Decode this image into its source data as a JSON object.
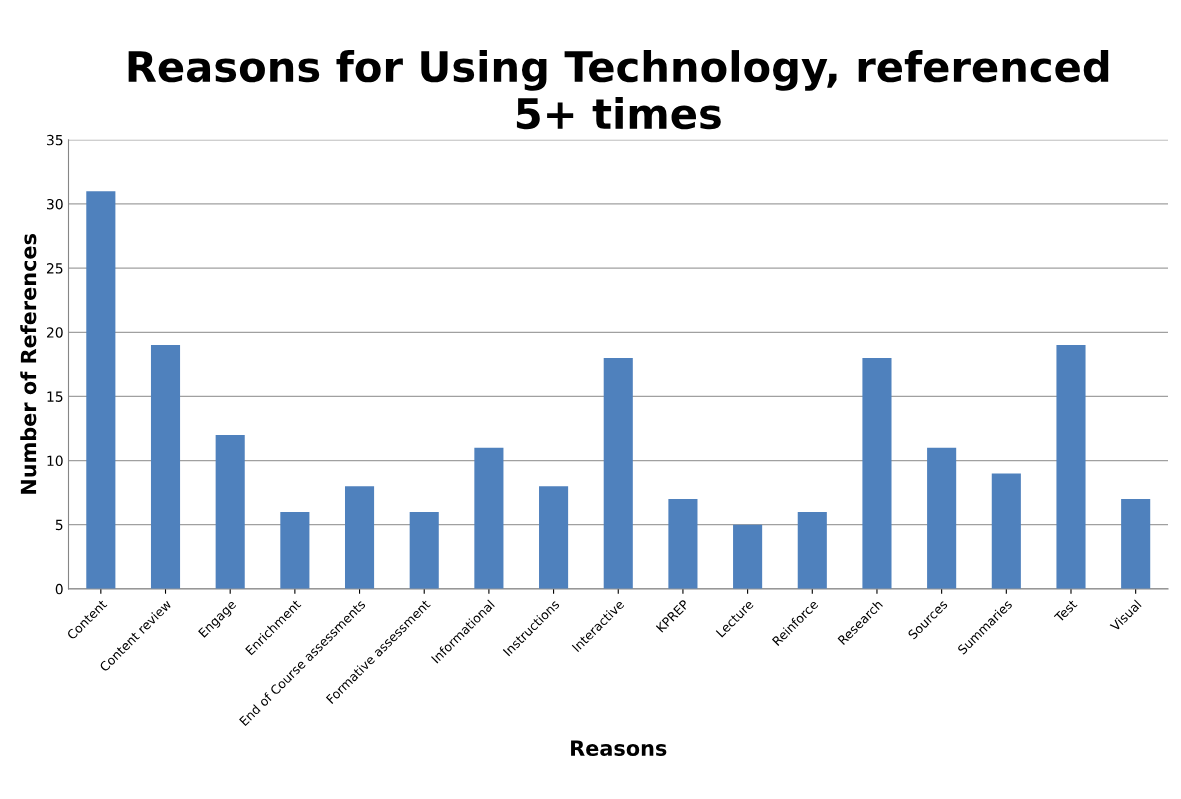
{
  "chart_data": {
    "type": "bar",
    "title": "Reasons for Using Technology, referenced\n5+ times",
    "xlabel": "Reasons",
    "ylabel": "Number of References",
    "categories": [
      "Content",
      "Content review",
      "Engage",
      "Enrichment",
      "End of Course assessments",
      "Formative assessment",
      "Informational",
      "Instructions",
      "Interactive",
      "KPREP",
      "Lecture",
      "Reinforce",
      "Research",
      "Sources",
      "Summaries",
      "Test",
      "Visual"
    ],
    "values": [
      31,
      19,
      12,
      6,
      8,
      6,
      11,
      8,
      18,
      7,
      5,
      6,
      18,
      11,
      9,
      19,
      7
    ],
    "color": "#4f81bd",
    "ylim": [
      0,
      35
    ],
    "yticks": [
      0,
      5,
      10,
      15,
      20,
      25,
      30,
      35
    ],
    "grid": "y",
    "legend": false
  }
}
